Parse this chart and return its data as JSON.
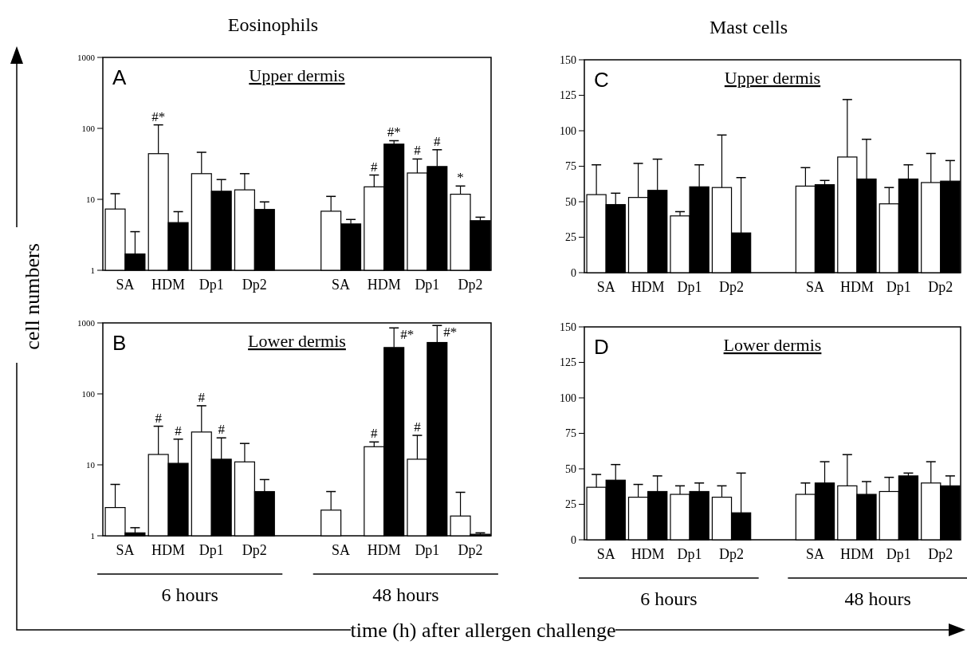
{
  "chart_data": [
    {
      "type": "bar",
      "title": "Eosinophils",
      "subtitle": "Upper dermis",
      "ylabel": "cell numbers",
      "annotations": [
        "A"
      ],
      "log": true,
      "ylim": [
        1,
        1000
      ],
      "yticks": [
        1,
        10,
        100,
        1000
      ],
      "categories": [
        "SA",
        "HDM",
        "Dp1",
        "Dp2",
        null,
        "SA",
        "HDM",
        "Dp1",
        "Dp2"
      ],
      "series": [
        {
          "color": "#ffffff",
          "values": [
            7.3,
            44,
            23,
            13.6,
            null,
            6.8,
            15,
            23.5,
            11.8
          ],
          "errors": [
            [
              7.3,
              12
            ],
            [
              44,
              112
            ],
            [
              23,
              46
            ],
            [
              13.6,
              23
            ],
            null,
            [
              6.8,
              11
            ],
            [
              15,
              22
            ],
            [
              23.5,
              37
            ],
            [
              11.8,
              15.4
            ]
          ],
          "value_labels": [
            null,
            "#*",
            null,
            null,
            null,
            null,
            "#",
            "#",
            "*"
          ]
        },
        {
          "color": "#000000",
          "values": [
            1.7,
            4.7,
            13,
            7.2,
            null,
            4.5,
            60,
            29,
            5
          ],
          "errors": [
            [
              1.7,
              3.5
            ],
            [
              4.7,
              6.7
            ],
            [
              13,
              19
            ],
            [
              7.2,
              9.2
            ],
            null,
            [
              4.5,
              5.2
            ],
            [
              60,
              67
            ],
            [
              29,
              50
            ],
            [
              5,
              5.6
            ]
          ],
          "value_labels": [
            null,
            null,
            null,
            null,
            null,
            null,
            "#*",
            "#",
            null
          ]
        }
      ]
    },
    {
      "type": "bar",
      "subtitle": "Lower dermis",
      "xlabel": "time (h) after allergen challenge",
      "annotations": [
        "B",
        "6 hours",
        "48 hours"
      ],
      "log": true,
      "ylim": [
        1,
        1000
      ],
      "yticks": [
        1,
        10,
        100,
        1000
      ],
      "categories": [
        "SA",
        "HDM",
        "Dp1",
        "Dp2",
        null,
        "SA",
        "HDM",
        "Dp1",
        "Dp2"
      ],
      "series": [
        {
          "color": "#ffffff",
          "values": [
            2.5,
            14,
            29,
            11,
            null,
            2.3,
            18,
            12,
            1.9
          ],
          "errors": [
            [
              2.5,
              5.3
            ],
            [
              14,
              35
            ],
            [
              29,
              68
            ],
            [
              11,
              20
            ],
            null,
            [
              2.3,
              4.2
            ],
            [
              18,
              21
            ],
            [
              12,
              26
            ],
            [
              1.9,
              4.1
            ]
          ],
          "value_labels": [
            null,
            "#",
            "#",
            null,
            null,
            null,
            "#",
            "#",
            null
          ]
        },
        {
          "color": "#000000",
          "values": [
            1.1,
            10.5,
            12,
            4.2,
            null,
            null,
            450,
            530,
            1.05
          ],
          "errors": [
            [
              1.1,
              1.3
            ],
            [
              10.5,
              23
            ],
            [
              12,
              24
            ],
            [
              4.2,
              6.2
            ],
            null,
            null,
            [
              450,
              850
            ],
            [
              530,
              920
            ],
            [
              1.05,
              1.1
            ]
          ],
          "value_labels": [
            null,
            "#",
            "#",
            null,
            null,
            null,
            "#*",
            "#*",
            null
          ]
        }
      ]
    },
    {
      "type": "bar",
      "title": "Mast cells",
      "subtitle": "Upper dermis",
      "annotations": [
        "C"
      ],
      "ylim": [
        0,
        150
      ],
      "yticks": [
        0,
        25,
        50,
        75,
        100,
        125,
        150
      ],
      "categories": [
        "SA",
        "HDM",
        "Dp1",
        "Dp2",
        null,
        "SA",
        "HDM",
        "Dp1",
        "Dp2"
      ],
      "series": [
        {
          "color": "#ffffff",
          "values": [
            55,
            53,
            40,
            60,
            null,
            61,
            81.5,
            48.5,
            63.5
          ],
          "errors": [
            [
              55,
              76
            ],
            [
              53,
              77
            ],
            [
              40,
              43
            ],
            [
              60,
              97
            ],
            null,
            [
              61,
              74
            ],
            [
              81.5,
              122
            ],
            [
              48.5,
              60
            ],
            [
              63.5,
              84
            ]
          ]
        },
        {
          "color": "#000000",
          "values": [
            48,
            58,
            60.5,
            28,
            null,
            62,
            66,
            66,
            64.5
          ],
          "errors": [
            [
              48,
              56
            ],
            [
              58,
              80
            ],
            [
              60.5,
              76
            ],
            [
              28,
              67
            ],
            null,
            [
              62,
              65
            ],
            [
              66,
              94
            ],
            [
              66,
              76
            ],
            [
              64.5,
              79
            ]
          ]
        }
      ]
    },
    {
      "type": "bar",
      "subtitle": "Lower dermis",
      "annotations": [
        "D",
        "6 hours",
        "48 hours"
      ],
      "ylim": [
        0,
        150
      ],
      "yticks": [
        0,
        25,
        50,
        75,
        100,
        125,
        150
      ],
      "categories": [
        "SA",
        "HDM",
        "Dp1",
        "Dp2",
        null,
        "SA",
        "HDM",
        "Dp1",
        "Dp2"
      ],
      "series": [
        {
          "color": "#ffffff",
          "values": [
            37,
            30,
            32,
            30,
            null,
            32,
            38,
            34,
            40
          ],
          "errors": [
            [
              37,
              46
            ],
            [
              30,
              39
            ],
            [
              32,
              38
            ],
            [
              30,
              38
            ],
            null,
            [
              32,
              40
            ],
            [
              38,
              60
            ],
            [
              34,
              44
            ],
            [
              40,
              55
            ]
          ]
        },
        {
          "color": "#000000",
          "values": [
            42,
            34,
            34,
            19,
            null,
            40,
            32,
            45,
            38
          ],
          "errors": [
            [
              42,
              53
            ],
            [
              34,
              45
            ],
            [
              34,
              40
            ],
            [
              19,
              47
            ],
            null,
            [
              40,
              55
            ],
            [
              32,
              41
            ],
            [
              45,
              47
            ],
            [
              38,
              45
            ]
          ]
        }
      ]
    }
  ]
}
